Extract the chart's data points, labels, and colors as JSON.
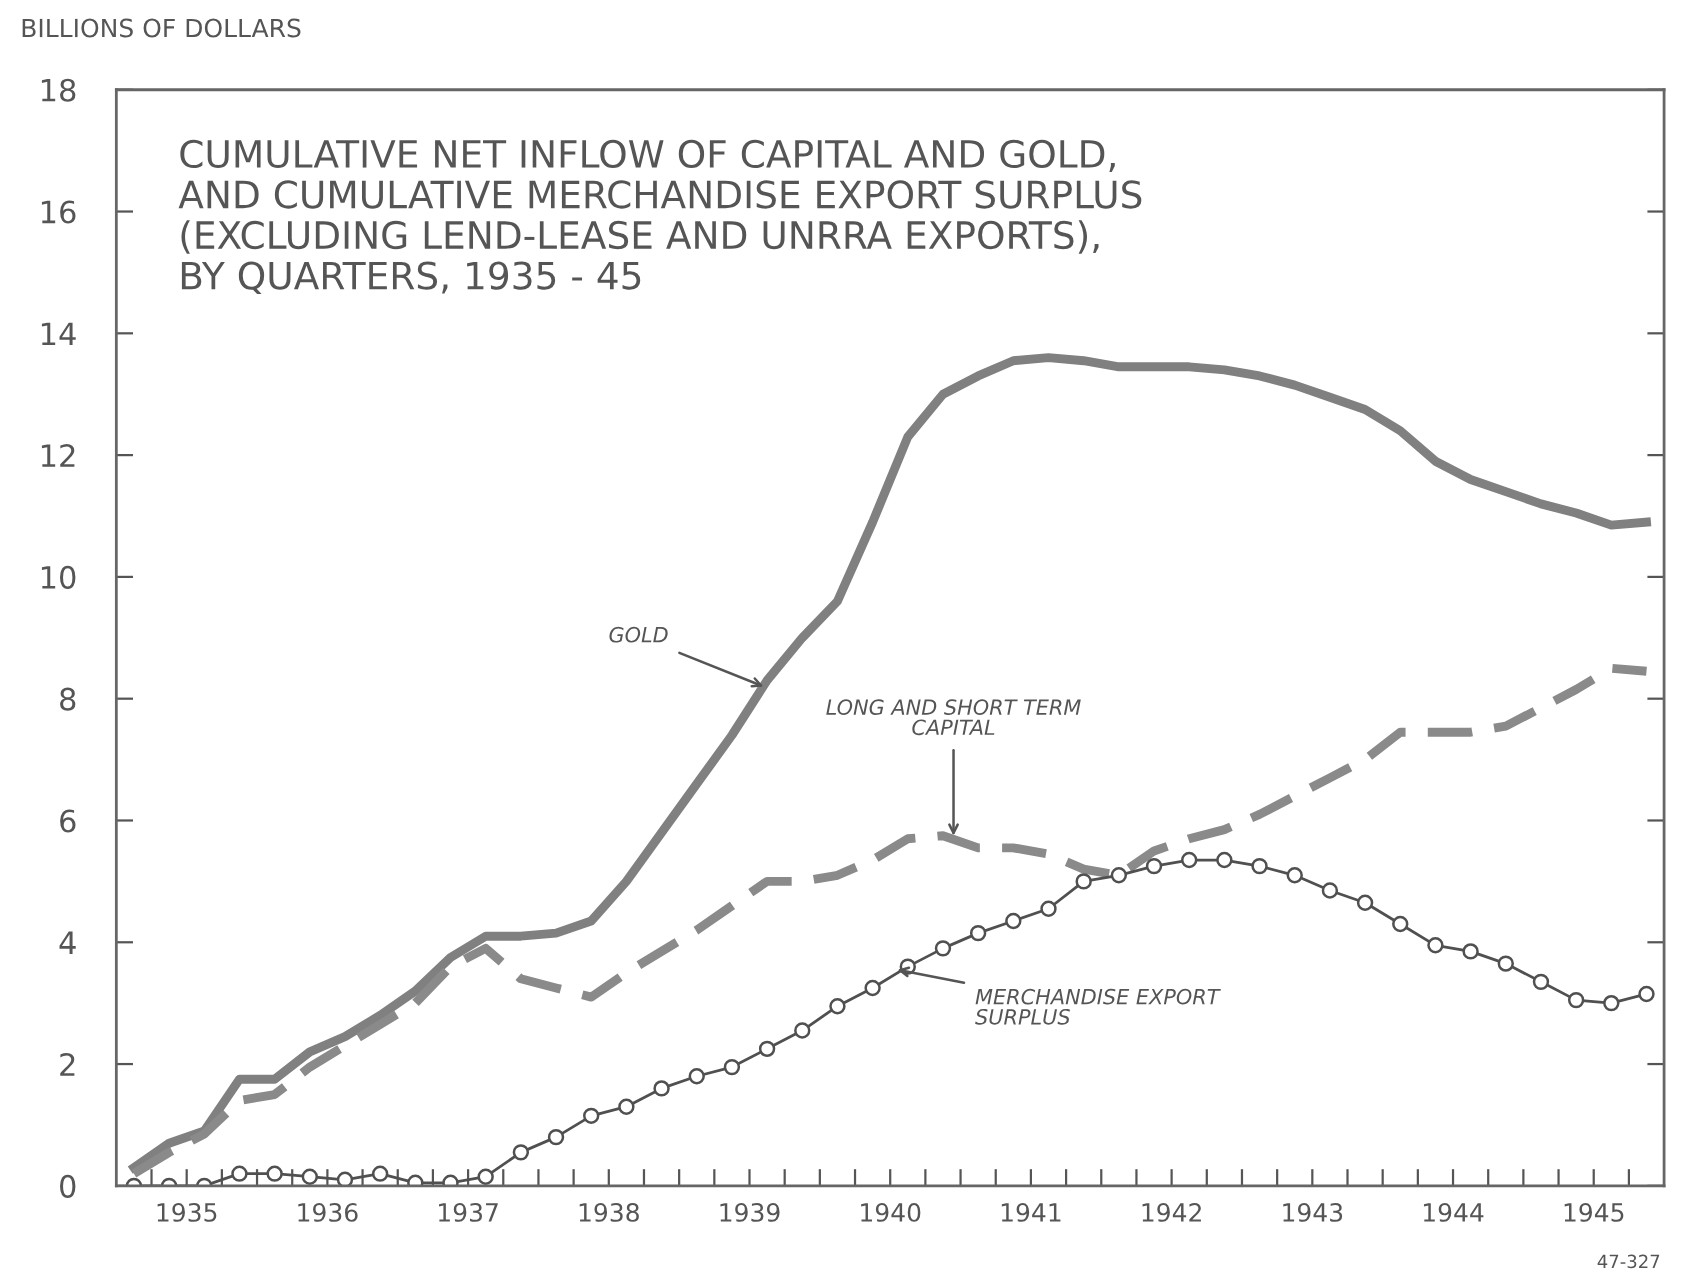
{
  "chart_data": {
    "type": "line",
    "title": "CUMULATIVE NET INFLOW OF CAPITAL AND GOLD,\nAND CUMULATIVE MERCHANDISE EXPORT SURPLUS\n(EXCLUDING LEND-LEASE AND UNRRA EXPORTS),\nBY QUARTERS, 1935 - 45",
    "ylabel": "BILLIONS OF DOLLARS",
    "x": [
      1935.125,
      1935.375,
      1935.625,
      1935.875,
      1936.125,
      1936.375,
      1936.625,
      1936.875,
      1937.125,
      1937.375,
      1937.625,
      1937.875,
      1938.125,
      1938.375,
      1938.625,
      1938.875,
      1939.125,
      1939.375,
      1939.625,
      1939.875,
      1940.125,
      1940.375,
      1940.625,
      1940.875,
      1941.125,
      1941.375,
      1941.625,
      1941.875,
      1942.125,
      1942.375,
      1942.625,
      1942.875,
      1943.125,
      1943.375,
      1943.625,
      1943.875,
      1944.125,
      1944.375,
      1944.625,
      1944.875,
      1945.125,
      1945.375,
      1945.625,
      1945.875
    ],
    "series": [
      {
        "color": "#808080",
        "line_style": "solid",
        "marker": "none",
        "values": [
          0.3,
          0.7,
          0.9,
          1.75,
          1.75,
          2.2,
          2.45,
          2.8,
          3.2,
          3.75,
          4.1,
          4.1,
          4.15,
          4.35,
          5.0,
          5.8,
          6.6,
          7.4,
          8.3,
          9.0,
          9.6,
          10.9,
          12.3,
          13.0,
          13.3,
          13.55,
          13.6,
          13.55,
          13.45,
          13.45,
          13.45,
          13.4,
          13.3,
          13.15,
          12.95,
          12.75,
          12.4,
          11.9,
          11.6,
          11.4,
          11.2,
          11.05,
          10.85,
          10.9
        ]
      },
      {
        "color": "#8a8a8a",
        "line_style": "dashed",
        "marker": "none",
        "values": [
          0.2,
          0.55,
          0.85,
          1.4,
          1.5,
          1.95,
          2.3,
          2.65,
          3.0,
          3.6,
          3.9,
          3.4,
          3.25,
          3.1,
          3.5,
          3.85,
          4.2,
          4.6,
          5.0,
          5.0,
          5.1,
          5.35,
          5.7,
          5.75,
          5.55,
          5.55,
          5.45,
          5.2,
          5.1,
          5.5,
          5.7,
          5.85,
          6.1,
          6.4,
          6.7,
          7.0,
          7.45,
          7.45,
          7.45,
          7.55,
          7.85,
          8.15,
          8.5,
          8.45
        ]
      },
      {
        "color": "#505050",
        "line_style": "solid",
        "marker": "circle",
        "values": [
          0.0,
          0.0,
          0.0,
          0.2,
          0.2,
          0.15,
          0.1,
          0.2,
          0.05,
          0.05,
          0.15,
          0.55,
          0.8,
          1.15,
          1.3,
          1.6,
          1.8,
          1.95,
          2.25,
          2.55,
          2.95,
          3.25,
          3.6,
          3.9,
          4.15,
          4.35,
          4.55,
          5.0,
          5.1,
          5.25,
          5.35,
          5.35,
          5.25,
          5.1,
          4.85,
          4.65,
          4.3,
          3.95,
          3.85,
          3.65,
          3.35,
          3.05,
          3.0,
          3.15
        ]
      }
    ],
    "annotations": [
      {
        "text": "GOLD",
        "x": 1939.6,
        "y": 8.2
      },
      {
        "text": "LONG AND SHORT TERM\nCAPITAL",
        "x": 1940.95,
        "y": 5.75
      },
      {
        "text": "MERCHANDISE EXPORT\nSURPLUS",
        "x": 1940.55,
        "y": 3.55
      },
      "47-327"
    ],
    "xlim": [
      1935,
      1946
    ],
    "ylim": [
      0,
      18
    ],
    "yticks": [
      0,
      2,
      4,
      6,
      8,
      10,
      12,
      14,
      16,
      18
    ],
    "xticks": [
      {
        "value": 1935.5,
        "label": "1935"
      },
      {
        "value": 1936.5,
        "label": "1936"
      },
      {
        "value": 1937.5,
        "label": "1937"
      },
      {
        "value": 1938.5,
        "label": "1938"
      },
      {
        "value": 1939.5,
        "label": "1939"
      },
      {
        "value": 1940.5,
        "label": "1940"
      },
      {
        "value": 1941.5,
        "label": "1941"
      },
      {
        "value": 1942.5,
        "label": "1942"
      },
      {
        "value": 1943.5,
        "label": "1943"
      },
      {
        "value": 1944.5,
        "label": "1944"
      },
      {
        "value": 1945.5,
        "label": "1945"
      },
      {
        "value": 1936,
        "label": null
      },
      {
        "value": 1937,
        "label": null
      },
      {
        "value": 1938,
        "label": null
      },
      {
        "value": 1939,
        "label": null
      },
      {
        "value": 1940,
        "label": null
      },
      {
        "value": 1941,
        "label": null
      },
      {
        "value": 1942,
        "label": null
      },
      {
        "value": 1943,
        "label": null
      },
      {
        "value": 1944,
        "label": null
      },
      {
        "value": 1945,
        "label": null
      },
      {
        "value": 1935.25,
        "label": null
      },
      {
        "value": 1935.75,
        "label": null
      },
      {
        "value": 1936.25,
        "label": null
      },
      {
        "value": 1936.75,
        "label": null
      },
      {
        "value": 1937.25,
        "label": null
      },
      {
        "value": 1937.75,
        "label": null
      },
      {
        "value": 1938.25,
        "label": null
      },
      {
        "value": 1938.75,
        "label": null
      },
      {
        "value": 1939.25,
        "label": null
      },
      {
        "value": 1939.75,
        "label": null
      },
      {
        "value": 1940.25,
        "label": null
      },
      {
        "value": 1940.75,
        "label": null
      },
      {
        "value": 1941.25,
        "label": null
      },
      {
        "value": 1941.75,
        "label": null
      },
      {
        "value": 1942.25,
        "label": null
      },
      {
        "value": 1942.75,
        "label": null
      },
      {
        "value": 1943.25,
        "label": null
      },
      {
        "value": 1943.75,
        "label": null
      },
      {
        "value": 1944.25,
        "label": null
      },
      {
        "value": 1944.75,
        "label": null
      },
      {
        "value": 1945.25,
        "label": null
      },
      {
        "value": 1945.75,
        "label": null
      }
    ],
    "grid": false,
    "legend": false
  }
}
